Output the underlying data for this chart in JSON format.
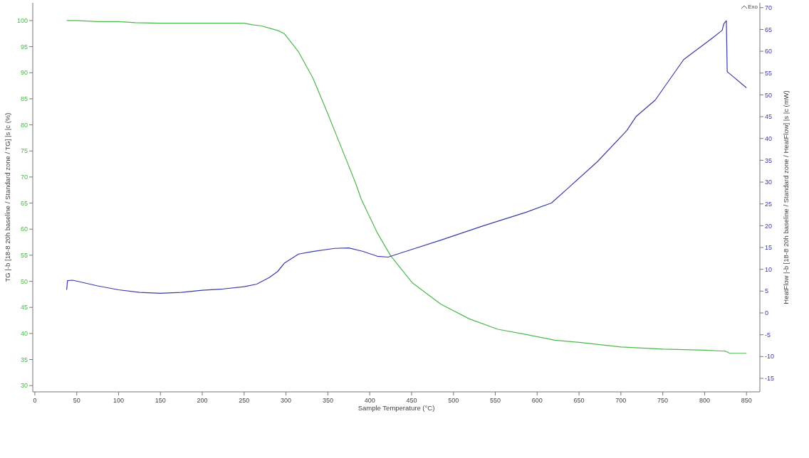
{
  "chart_data": {
    "type": "line",
    "xlabel": "Sample Temperature (°C)",
    "ylabel": "TG |-b [18-8 20h  baseline / Standard zone / TG] |s |c (%)",
    "y2label": "HeatFlow |-b [18-8 20h  baseline / Standard zone / HeatFlow] |s |c (mW)",
    "annotations": [
      "Exo"
    ],
    "xlim": [
      -2.5,
      866
    ],
    "xticks": [
      0,
      50,
      100,
      150,
      200,
      250,
      300,
      350,
      400,
      450,
      500,
      550,
      600,
      650,
      700,
      750,
      800,
      850
    ],
    "ylim": [
      28.8,
      103.4
    ],
    "yticks": [
      30,
      35,
      40,
      45,
      50,
      55,
      60,
      65,
      70,
      75,
      80,
      85,
      90,
      95,
      100
    ],
    "y2lim": [
      -18.1,
      71.1
    ],
    "y2ticks": [
      -15,
      -10,
      -5,
      0,
      5,
      10,
      15,
      20,
      25,
      30,
      35,
      40,
      45,
      50,
      55,
      60,
      65,
      70
    ],
    "grid": false,
    "series": [
      {
        "color": "#4cb84c",
        "x": [
          38,
          50,
          75,
          100,
          120,
          150,
          200,
          250,
          260,
          270,
          281,
          290,
          298,
          315,
          332,
          349,
          366,
          383,
          390,
          409,
          425,
          451,
          485,
          519,
          553,
          587,
          621,
          650,
          700,
          750,
          800,
          825,
          830,
          850
        ],
        "values": [
          100,
          100,
          99.8,
          99.8,
          99.6,
          99.5,
          99.5,
          99.5,
          99.2,
          99,
          98.5,
          98.1,
          97.5,
          94,
          89,
          82.5,
          75.7,
          68.9,
          65.7,
          59.3,
          54.9,
          49.7,
          45.6,
          42.8,
          40.8,
          39.8,
          38.7,
          38.3,
          37.4,
          37,
          36.8,
          36.6,
          36.2,
          36.2
        ]
      },
      {
        "color": "#3a3aa8",
        "axis": "y2",
        "x": [
          38,
          39,
          45,
          50,
          75,
          100,
          125,
          150,
          175,
          200,
          225,
          250,
          265,
          280,
          290,
          298,
          315,
          332,
          358,
          375,
          392,
          409,
          422,
          443,
          485,
          536,
          587,
          617,
          638,
          672,
          707,
          718,
          741,
          775,
          809,
          821,
          823,
          826,
          827,
          834,
          850
        ],
        "values": [
          5.3,
          7.4,
          7.5,
          7.3,
          6.2,
          5.3,
          4.7,
          4.5,
          4.7,
          5.2,
          5.5,
          6,
          6.6,
          8.1,
          9.5,
          11.4,
          13.5,
          14.1,
          14.8,
          14.9,
          14.1,
          13,
          12.8,
          14.1,
          16.7,
          20,
          23.1,
          25.2,
          28.8,
          34.7,
          41.8,
          45,
          48.8,
          58.1,
          63,
          64.8,
          66.3,
          67,
          55.3,
          54.2,
          51.6
        ]
      }
    ]
  }
}
